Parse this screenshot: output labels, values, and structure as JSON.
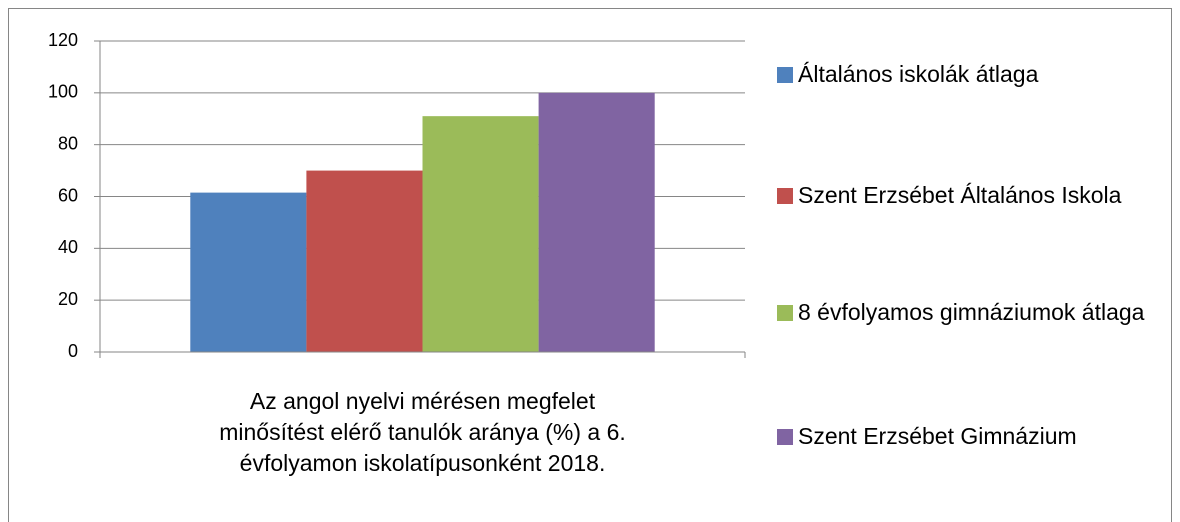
{
  "chart_data": {
    "type": "bar",
    "categories": [
      "Az angol nyelvi mérésen megfelet minősítést elérő tanulók aránya (%) a 6. évfolyamon iskolatípusonként 2018."
    ],
    "series": [
      {
        "name": "Általános iskolák átlaga",
        "color": "#4f81bd",
        "values": [
          61.5
        ]
      },
      {
        "name": "Szent Erzsébet Általános Iskola",
        "color": "#c0504d",
        "values": [
          70
        ]
      },
      {
        "name": "8 évfolyamos gimnáziumok átlaga",
        "color": "#9bbb59",
        "values": [
          91
        ]
      },
      {
        "name": "Szent Erzsébet Gimnázium",
        "color": "#8064a2",
        "values": [
          100
        ]
      }
    ],
    "ylim": [
      0,
      120
    ],
    "yticks": [
      0,
      20,
      40,
      60,
      80,
      100,
      120
    ],
    "grid": true,
    "legend": "right"
  }
}
